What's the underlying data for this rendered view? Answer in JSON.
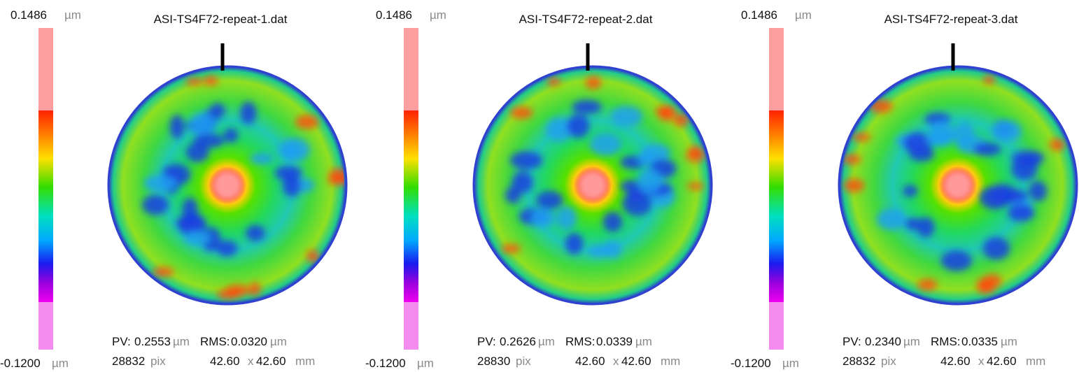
{
  "labels": {
    "pv": "PV:",
    "rms": "RMS:",
    "pix": "pix",
    "times": "x",
    "mm": "mm",
    "um": "µm"
  },
  "panels": [
    {
      "title": "ASI-TS4F72-repeat-1.dat",
      "scale_max": "0.1486",
      "scale_min": "-0.1200",
      "pv": "0.2553",
      "rms": "0.0320",
      "pixels": "28832",
      "width": "42.60",
      "height": "42.60"
    },
    {
      "title": "ASI-TS4F72-repeat-2.dat",
      "scale_max": "0.1486",
      "scale_min": "-0.1200",
      "pv": "0.2626",
      "rms": "0.0339",
      "pixels": "28830",
      "width": "42.60",
      "height": "42.60"
    },
    {
      "title": "ASI-TS4F72-repeat-3.dat",
      "scale_max": "0.1486",
      "scale_min": "-0.1200",
      "pv": "0.2340",
      "rms": "0.0335",
      "pixels": "28832",
      "width": "42.60",
      "height": "42.60"
    }
  ]
}
